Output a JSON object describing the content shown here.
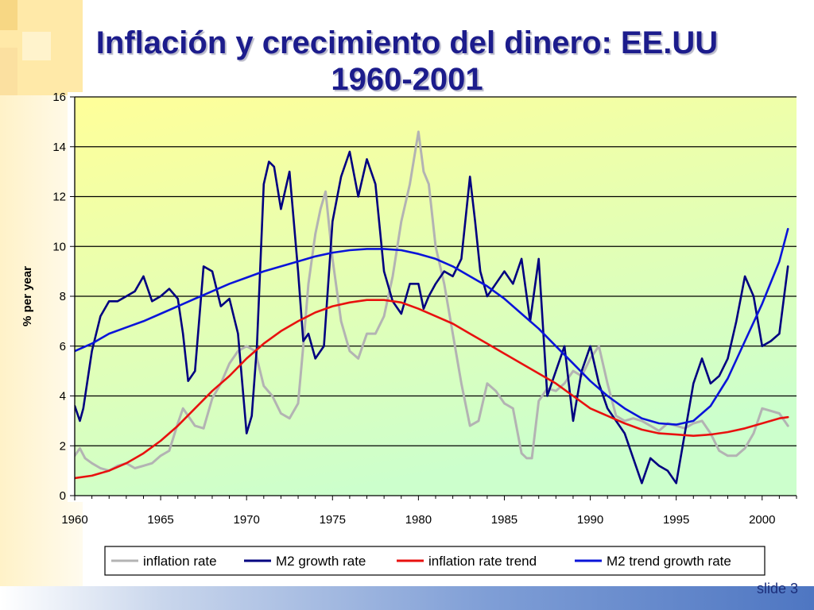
{
  "slide": {
    "title_line1": "Inflación y crecimiento del dinero: EE.UU",
    "title_line2": "1960-2001",
    "slide_number": "slide 3"
  },
  "colors": {
    "title": "#1c1c8c",
    "inflation": "#b3b3b3",
    "m2": "#000080",
    "inflation_trend": "#e8110f",
    "m2_trend": "#0a14d9",
    "plot_bg_top": "#ffff99",
    "plot_bg_bottom": "#ccffcc"
  },
  "chart_data": {
    "type": "line",
    "title": "",
    "xlabel": "",
    "ylabel": "% per year",
    "xlim": [
      1960,
      2002
    ],
    "ylim": [
      0,
      16
    ],
    "x_ticks": [
      1960,
      1965,
      1970,
      1975,
      1980,
      1985,
      1990,
      1995,
      2000
    ],
    "y_ticks": [
      0,
      2,
      4,
      6,
      8,
      10,
      12,
      14,
      16
    ],
    "grid": "horizontal",
    "legend": "bottom",
    "series": [
      {
        "name": "inflation rate",
        "color": "#b3b3b3",
        "x": [
          1960,
          1960.3,
          1960.6,
          1961,
          1961.5,
          1962,
          1962.5,
          1963,
          1963.5,
          1964,
          1964.5,
          1965,
          1965.5,
          1966,
          1966.3,
          1966.6,
          1967,
          1967.5,
          1968,
          1968.5,
          1969,
          1969.5,
          1970,
          1970.5,
          1971,
          1971.5,
          1972,
          1972.5,
          1973,
          1973.3,
          1973.6,
          1974,
          1974.3,
          1974.6,
          1975,
          1975.5,
          1976,
          1976.5,
          1977,
          1977.5,
          1978,
          1978.5,
          1979,
          1979.5,
          1980,
          1980.3,
          1980.6,
          1981,
          1981.5,
          1982,
          1982.5,
          1983,
          1983.5,
          1984,
          1984.5,
          1985,
          1985.5,
          1986,
          1986.3,
          1986.6,
          1987,
          1987.5,
          1988,
          1988.5,
          1989,
          1989.5,
          1990,
          1990.5,
          1991,
          1991.5,
          1992,
          1992.5,
          1993,
          1993.5,
          1994,
          1994.5,
          1995,
          1995.5,
          1996,
          1996.5,
          1997,
          1997.5,
          1998,
          1998.5,
          1999,
          1999.5,
          2000,
          2000.5,
          2001,
          2001.5
        ],
        "values": [
          1.6,
          1.9,
          1.5,
          1.3,
          1.1,
          1.0,
          1.2,
          1.3,
          1.1,
          1.2,
          1.3,
          1.6,
          1.8,
          2.9,
          3.5,
          3.2,
          2.8,
          2.7,
          3.9,
          4.5,
          5.3,
          5.8,
          6.0,
          5.8,
          4.4,
          4.0,
          3.3,
          3.1,
          3.7,
          6.0,
          8.5,
          10.5,
          11.5,
          12.2,
          9.5,
          7.0,
          5.8,
          5.5,
          6.5,
          6.5,
          7.2,
          8.8,
          11.0,
          12.5,
          14.6,
          13.0,
          12.5,
          10.0,
          8.5,
          6.5,
          4.5,
          2.8,
          3.0,
          4.5,
          4.2,
          3.7,
          3.5,
          1.7,
          1.5,
          1.5,
          3.8,
          4.3,
          4.2,
          4.5,
          5.0,
          4.8,
          5.5,
          6.0,
          4.5,
          3.2,
          3.0,
          3.1,
          3.0,
          2.8,
          2.6,
          2.9,
          2.8,
          2.7,
          2.9,
          3.0,
          2.5,
          1.8,
          1.6,
          1.6,
          1.9,
          2.5,
          3.5,
          3.4,
          3.3,
          2.8
        ]
      },
      {
        "name": "M2 growth rate",
        "color": "#000080",
        "x": [
          1960,
          1960.3,
          1960.5,
          1961,
          1961.5,
          1962,
          1962.5,
          1963,
          1963.5,
          1964,
          1964.5,
          1965,
          1965.5,
          1966,
          1966.3,
          1966.6,
          1967,
          1967.5,
          1968,
          1968.5,
          1969,
          1969.5,
          1970,
          1970.3,
          1970.6,
          1971,
          1971.3,
          1971.6,
          1972,
          1972.5,
          1973,
          1973.3,
          1973.6,
          1974,
          1974.5,
          1975,
          1975.5,
          1976,
          1976.5,
          1977,
          1977.5,
          1978,
          1978.5,
          1979,
          1979.5,
          1980,
          1980.3,
          1980.6,
          1981,
          1981.5,
          1982,
          1982.5,
          1983,
          1983.3,
          1983.6,
          1984,
          1984.5,
          1985,
          1985.5,
          1986,
          1986.5,
          1987,
          1987.5,
          1988,
          1988.5,
          1989,
          1989.5,
          1990,
          1990.5,
          1991,
          1991.5,
          1992,
          1992.5,
          1993,
          1993.5,
          1994,
          1994.5,
          1995,
          1995.5,
          1996,
          1996.5,
          1997,
          1997.5,
          1998,
          1998.5,
          1999,
          1999.5,
          2000,
          2000.5,
          2001,
          2001.5
        ],
        "values": [
          3.6,
          3.0,
          3.5,
          5.8,
          7.2,
          7.8,
          7.8,
          8.0,
          8.2,
          8.8,
          7.8,
          8.0,
          8.3,
          7.9,
          6.5,
          4.6,
          5.0,
          9.2,
          9.0,
          7.6,
          7.9,
          6.5,
          2.5,
          3.2,
          6.0,
          12.5,
          13.4,
          13.2,
          11.5,
          13.0,
          9.0,
          6.2,
          6.5,
          5.5,
          6.0,
          11.0,
          12.8,
          13.8,
          12.0,
          13.5,
          12.5,
          9.0,
          7.8,
          7.3,
          8.5,
          8.5,
          7.5,
          8.0,
          8.5,
          9.0,
          8.8,
          9.5,
          12.8,
          11.0,
          9.0,
          8.0,
          8.5,
          9.0,
          8.5,
          9.5,
          7.0,
          9.5,
          4.0,
          5.0,
          6.0,
          3.0,
          5.0,
          6.0,
          4.5,
          3.5,
          3.0,
          2.5,
          1.5,
          0.5,
          1.5,
          1.2,
          1.0,
          0.5,
          2.5,
          4.5,
          5.5,
          4.5,
          4.8,
          5.5,
          7.0,
          8.8,
          8.0,
          6.0,
          6.2,
          6.5,
          9.2
        ]
      },
      {
        "name": "inflation rate trend",
        "color": "#e8110f",
        "x": [
          1960,
          1961,
          1962,
          1963,
          1964,
          1965,
          1966,
          1967,
          1968,
          1969,
          1970,
          1971,
          1972,
          1973,
          1974,
          1975,
          1976,
          1977,
          1978,
          1979,
          1980,
          1981,
          1982,
          1983,
          1984,
          1985,
          1986,
          1987,
          1988,
          1989,
          1990,
          1991,
          1992,
          1993,
          1994,
          1995,
          1996,
          1997,
          1998,
          1999,
          2000,
          2001,
          2001.5
        ],
        "values": [
          0.7,
          0.8,
          1.0,
          1.3,
          1.7,
          2.2,
          2.8,
          3.5,
          4.2,
          4.8,
          5.5,
          6.1,
          6.6,
          7.0,
          7.35,
          7.6,
          7.75,
          7.85,
          7.85,
          7.75,
          7.5,
          7.2,
          6.9,
          6.5,
          6.1,
          5.7,
          5.3,
          4.9,
          4.5,
          4.0,
          3.5,
          3.2,
          2.9,
          2.65,
          2.5,
          2.45,
          2.4,
          2.45,
          2.55,
          2.7,
          2.9,
          3.1,
          3.15
        ]
      },
      {
        "name": "M2 trend growth rate",
        "color": "#0a14d9",
        "x": [
          1960,
          1961,
          1962,
          1963,
          1964,
          1965,
          1966,
          1967,
          1968,
          1969,
          1970,
          1971,
          1972,
          1973,
          1974,
          1975,
          1976,
          1977,
          1978,
          1979,
          1980,
          1981,
          1982,
          1983,
          1984,
          1985,
          1986,
          1987,
          1988,
          1989,
          1990,
          1991,
          1992,
          1993,
          1994,
          1995,
          1996,
          1997,
          1998,
          1999,
          2000,
          2001,
          2001.5
        ],
        "values": [
          5.8,
          6.1,
          6.5,
          6.75,
          7.0,
          7.3,
          7.6,
          7.9,
          8.2,
          8.5,
          8.75,
          9.0,
          9.2,
          9.4,
          9.6,
          9.75,
          9.85,
          9.9,
          9.9,
          9.85,
          9.7,
          9.5,
          9.2,
          8.8,
          8.4,
          7.9,
          7.3,
          6.7,
          6.0,
          5.3,
          4.6,
          4.0,
          3.5,
          3.1,
          2.9,
          2.85,
          3.0,
          3.6,
          4.7,
          6.2,
          7.7,
          9.4,
          10.7
        ]
      }
    ]
  }
}
